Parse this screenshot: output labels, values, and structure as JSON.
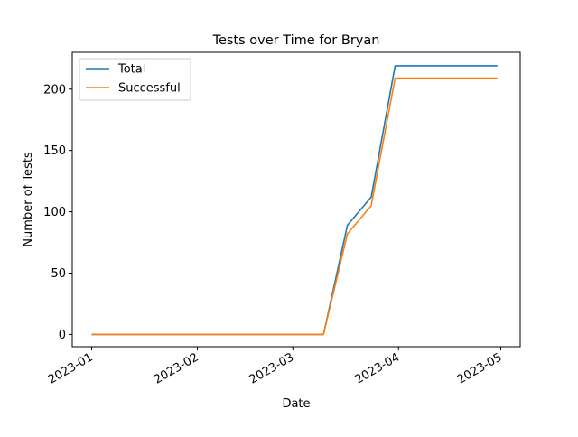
{
  "chart_data": {
    "type": "line",
    "title": "Tests over Time for Bryan",
    "xlabel": "Date",
    "ylabel": "Number of Tests",
    "x_axis_type": "date",
    "xlim": [
      "2023-01-01",
      "2023-05-01"
    ],
    "ylim": [
      -10,
      230
    ],
    "x_ticks": [
      "2023-01",
      "2023-02",
      "2023-03",
      "2023-04",
      "2023-05"
    ],
    "x_tick_dates": [
      "2023-01-01",
      "2023-02-01",
      "2023-03-01",
      "2023-04-01",
      "2023-05-01"
    ],
    "y_ticks": [
      0,
      50,
      100,
      150,
      200
    ],
    "grid": false,
    "legend_position": "top-left",
    "series": [
      {
        "name": "Total",
        "color": "#1f77b4",
        "points": [
          {
            "x": "2023-01-01",
            "y": 0
          },
          {
            "x": "2023-03-10",
            "y": 0
          },
          {
            "x": "2023-03-17",
            "y": 89
          },
          {
            "x": "2023-03-24",
            "y": 112
          },
          {
            "x": "2023-03-31",
            "y": 219
          },
          {
            "x": "2023-04-30",
            "y": 219
          }
        ]
      },
      {
        "name": "Successful",
        "color": "#ff7f0e",
        "points": [
          {
            "x": "2023-01-01",
            "y": 0
          },
          {
            "x": "2023-03-10",
            "y": 0
          },
          {
            "x": "2023-03-17",
            "y": 82
          },
          {
            "x": "2023-03-24",
            "y": 105
          },
          {
            "x": "2023-03-31",
            "y": 209
          },
          {
            "x": "2023-04-30",
            "y": 209
          }
        ]
      }
    ]
  }
}
